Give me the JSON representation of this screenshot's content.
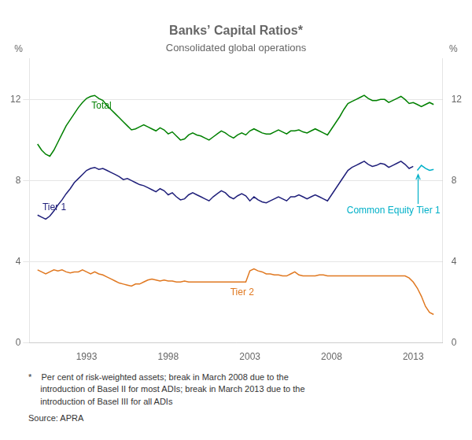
{
  "chart_data": {
    "type": "line",
    "title": "Banks’ Capital Ratios*",
    "subtitle": "Consolidated global operations",
    "ylabel": "%",
    "y2label": "%",
    "xlim": [
      1989.5,
      2014.8
    ],
    "xticks": [
      1993,
      1998,
      2003,
      2008,
      2013
    ],
    "ylim": [
      0,
      14
    ],
    "yticks": [
      0,
      4,
      8,
      12
    ],
    "y2lim": [
      0,
      14
    ],
    "y2ticks": [
      0,
      4,
      8,
      12
    ],
    "grid": "y",
    "series": [
      {
        "color": "#008000",
        "x": [
          1990.0,
          1990.25,
          1990.5,
          1990.75,
          1991.0,
          1991.25,
          1991.5,
          1991.75,
          1992.0,
          1992.25,
          1992.5,
          1992.75,
          1993.0,
          1993.25,
          1993.5,
          1993.75,
          1994.0,
          1994.25,
          1994.5,
          1994.75,
          1995.0,
          1995.25,
          1995.5,
          1995.75,
          1996.0,
          1996.25,
          1996.5,
          1996.75,
          1997.0,
          1997.25,
          1997.5,
          1997.75,
          1998.0,
          1998.25,
          1998.5,
          1998.75,
          1999.0,
          1999.25,
          1999.5,
          1999.75,
          2000.0,
          2000.25,
          2000.5,
          2000.75,
          2001.0,
          2001.25,
          2001.5,
          2001.75,
          2002.0,
          2002.25,
          2002.5,
          2002.75,
          2003.0,
          2003.25,
          2003.5,
          2003.75,
          2004.0,
          2004.25,
          2004.5,
          2004.75,
          2005.0,
          2005.25,
          2005.5,
          2005.75,
          2006.0,
          2006.25,
          2006.5,
          2006.75,
          2007.0,
          2007.25,
          2007.5,
          2007.75,
          2008.0,
          2008.25,
          2008.5,
          2008.75,
          2009.0,
          2009.25,
          2009.5,
          2009.75,
          2010.0,
          2010.25,
          2010.5,
          2010.75,
          2011.0,
          2011.25,
          2011.5,
          2011.75,
          2012.0,
          2012.25,
          2012.5,
          2012.75,
          2013.0,
          2013.25,
          2013.5,
          2013.75,
          2014.0,
          2014.25
        ],
        "values": [
          9.8,
          9.5,
          9.3,
          9.2,
          9.5,
          9.9,
          10.3,
          10.7,
          11.0,
          11.3,
          11.6,
          11.85,
          12.05,
          12.15,
          12.2,
          12.05,
          11.95,
          11.7,
          11.5,
          11.3,
          11.1,
          10.9,
          10.7,
          10.5,
          10.55,
          10.65,
          10.75,
          10.65,
          10.55,
          10.45,
          10.6,
          10.5,
          10.3,
          10.4,
          10.2,
          10.0,
          10.05,
          10.25,
          10.35,
          10.25,
          10.2,
          10.1,
          10.0,
          10.15,
          10.3,
          10.45,
          10.35,
          10.2,
          10.1,
          10.25,
          10.35,
          10.25,
          10.45,
          10.55,
          10.45,
          10.35,
          10.3,
          10.3,
          10.4,
          10.5,
          10.4,
          10.3,
          10.45,
          10.45,
          10.5,
          10.4,
          10.35,
          10.45,
          10.55,
          10.45,
          10.35,
          10.25,
          10.55,
          10.85,
          11.15,
          11.5,
          11.8,
          11.9,
          12.0,
          12.1,
          12.2,
          12.05,
          11.95,
          11.95,
          12.0,
          12.0,
          11.85,
          11.95,
          12.05,
          12.15,
          12.0,
          11.8,
          11.85,
          11.75,
          11.65,
          11.75,
          11.85,
          11.75
        ]
      },
      {
        "color": "#1f1f7a",
        "x": [
          1990.0,
          1990.25,
          1990.5,
          1990.75,
          1991.0,
          1991.25,
          1991.5,
          1991.75,
          1992.0,
          1992.25,
          1992.5,
          1992.75,
          1993.0,
          1993.25,
          1993.5,
          1993.75,
          1994.0,
          1994.25,
          1994.5,
          1994.75,
          1995.0,
          1995.25,
          1995.5,
          1995.75,
          1996.0,
          1996.25,
          1996.5,
          1996.75,
          1997.0,
          1997.25,
          1997.5,
          1997.75,
          1998.0,
          1998.25,
          1998.5,
          1998.75,
          1999.0,
          1999.25,
          1999.5,
          1999.75,
          2000.0,
          2000.25,
          2000.5,
          2000.75,
          2001.0,
          2001.25,
          2001.5,
          2001.75,
          2002.0,
          2002.25,
          2002.5,
          2002.75,
          2003.0,
          2003.25,
          2003.5,
          2003.75,
          2004.0,
          2004.25,
          2004.5,
          2004.75,
          2005.0,
          2005.25,
          2005.5,
          2005.75,
          2006.0,
          2006.25,
          2006.5,
          2006.75,
          2007.0,
          2007.25,
          2007.5,
          2007.75,
          2008.0,
          2008.25,
          2008.5,
          2008.75,
          2009.0,
          2009.25,
          2009.5,
          2009.75,
          2010.0,
          2010.25,
          2010.5,
          2010.75,
          2011.0,
          2011.25,
          2011.5,
          2011.75,
          2012.0,
          2012.25,
          2012.5,
          2012.75,
          2013.0
        ],
        "values": [
          6.3,
          6.2,
          6.1,
          6.25,
          6.5,
          6.8,
          7.05,
          7.35,
          7.6,
          7.9,
          8.1,
          8.3,
          8.5,
          8.6,
          8.65,
          8.55,
          8.6,
          8.5,
          8.4,
          8.3,
          8.2,
          8.05,
          8.1,
          8.0,
          7.9,
          7.8,
          7.75,
          7.65,
          7.55,
          7.45,
          7.6,
          7.5,
          7.3,
          7.4,
          7.2,
          7.05,
          7.1,
          7.3,
          7.4,
          7.3,
          7.2,
          7.1,
          7.0,
          7.2,
          7.35,
          7.5,
          7.4,
          7.2,
          7.1,
          7.25,
          7.35,
          7.25,
          7.0,
          7.2,
          7.05,
          6.95,
          6.9,
          7.0,
          7.1,
          7.2,
          7.1,
          7.0,
          7.2,
          7.2,
          7.3,
          7.2,
          7.1,
          7.2,
          7.3,
          7.2,
          7.1,
          7.0,
          7.3,
          7.6,
          7.9,
          8.2,
          8.5,
          8.65,
          8.75,
          8.85,
          8.95,
          8.8,
          8.7,
          8.75,
          8.85,
          8.8,
          8.65,
          8.75,
          8.85,
          8.95,
          8.8,
          8.6,
          8.7
        ]
      },
      {
        "color": "#e07820",
        "x": [
          1990.0,
          1990.25,
          1990.5,
          1990.75,
          1991.0,
          1991.25,
          1991.5,
          1991.75,
          1992.0,
          1992.25,
          1992.5,
          1992.75,
          1993.0,
          1993.25,
          1993.5,
          1993.75,
          1994.0,
          1994.25,
          1994.5,
          1994.75,
          1995.0,
          1995.25,
          1995.5,
          1995.75,
          1996.0,
          1996.25,
          1996.5,
          1996.75,
          1997.0,
          1997.25,
          1997.5,
          1997.75,
          1998.0,
          1998.25,
          1998.5,
          1998.75,
          1999.0,
          1999.25,
          1999.5,
          1999.75,
          2000.0,
          2000.25,
          2000.5,
          2000.75,
          2001.0,
          2001.25,
          2001.5,
          2001.75,
          2002.0,
          2002.25,
          2002.5,
          2002.75,
          2003.0,
          2003.25,
          2003.5,
          2003.75,
          2004.0,
          2004.25,
          2004.5,
          2004.75,
          2005.0,
          2005.25,
          2005.5,
          2005.75,
          2006.0,
          2006.25,
          2006.5,
          2006.75,
          2007.0,
          2007.25,
          2007.5,
          2007.75,
          2008.0,
          2008.25,
          2008.5,
          2008.75,
          2009.0,
          2009.25,
          2009.5,
          2009.75,
          2010.0,
          2010.25,
          2010.5,
          2010.75,
          2011.0,
          2011.25,
          2011.5,
          2011.75,
          2012.0,
          2012.25,
          2012.5,
          2012.75,
          2013.0,
          2013.25,
          2013.5,
          2013.75,
          2014.0,
          2014.25
        ],
        "values": [
          3.6,
          3.5,
          3.4,
          3.5,
          3.6,
          3.55,
          3.6,
          3.5,
          3.45,
          3.5,
          3.5,
          3.6,
          3.5,
          3.4,
          3.5,
          3.4,
          3.35,
          3.25,
          3.15,
          3.05,
          2.95,
          2.9,
          2.85,
          2.8,
          2.9,
          2.9,
          3.0,
          3.1,
          3.15,
          3.1,
          3.05,
          3.1,
          3.05,
          3.05,
          3.0,
          3.0,
          3.05,
          3.0,
          3.0,
          3.0,
          3.0,
          3.0,
          3.0,
          3.0,
          3.0,
          3.0,
          3.0,
          3.0,
          3.0,
          3.0,
          3.0,
          3.0,
          3.55,
          3.65,
          3.55,
          3.5,
          3.4,
          3.4,
          3.35,
          3.35,
          3.3,
          3.3,
          3.4,
          3.5,
          3.35,
          3.3,
          3.3,
          3.3,
          3.3,
          3.35,
          3.35,
          3.3,
          3.3,
          3.3,
          3.3,
          3.3,
          3.3,
          3.3,
          3.3,
          3.3,
          3.3,
          3.3,
          3.3,
          3.3,
          3.3,
          3.3,
          3.3,
          3.3,
          3.3,
          3.3,
          3.3,
          3.2,
          3.0,
          2.7,
          2.3,
          1.8,
          1.5,
          1.4
        ]
      },
      {
        "color": "#00b0c8",
        "x": [
          2013.25,
          2013.5,
          2013.75,
          2014.0,
          2014.25
        ],
        "values": [
          8.5,
          8.75,
          8.6,
          8.5,
          8.55
        ]
      }
    ],
    "annotations": [
      {
        "text": "Total",
        "x": 1993.3,
        "y": 11.55,
        "color": "#008000"
      },
      {
        "text": "Tier 1",
        "x": 1990.3,
        "y": 6.55,
        "color": "#1f1f7a"
      },
      {
        "text": "Tier 2",
        "x": 2001.8,
        "y": 2.35,
        "color": "#e07820"
      },
      {
        "text": "Common Equity Tier 1",
        "x": 2010.5,
        "y": 6.5,
        "arrow_x": 2013.3,
        "arrow_y": 8.3,
        "color": "#00b0c8"
      }
    ],
    "notes": [
      "*    Per cent of risk-weighted assets; break in March 2008 due to the\n     introduction of Basel II for most ADIs; break in March 2013 due to the\n     introduction of Basel III for all ADIs",
      "Source: APRA"
    ]
  }
}
